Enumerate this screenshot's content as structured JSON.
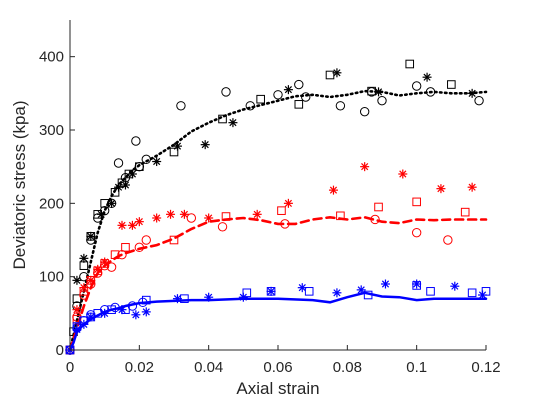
{
  "chart_data": {
    "type": "scatter",
    "title": "",
    "xlabel": "Axial strain",
    "ylabel": "Deviatoric stress (kpa)",
    "xlim": [
      0,
      0.12
    ],
    "ylim": [
      0,
      450
    ],
    "xticks": [
      0,
      0.02,
      0.04,
      0.06,
      0.08,
      0.1,
      0.12
    ],
    "xtick_labels": [
      "0",
      "0.02",
      "0.04",
      "0.06",
      "0.08",
      "0.1",
      "0.12"
    ],
    "yticks": [
      0,
      100,
      200,
      300,
      400
    ],
    "ytick_labels": [
      "0",
      "100",
      "200",
      "300",
      "400"
    ],
    "grid": false,
    "legend": "none",
    "series": [
      {
        "color": "#000000",
        "curve_style": "dotted",
        "curve": [
          [
            0,
            0
          ],
          [
            0.002,
            40
          ],
          [
            0.004,
            80
          ],
          [
            0.006,
            120
          ],
          [
            0.008,
            160
          ],
          [
            0.01,
            190
          ],
          [
            0.012,
            210
          ],
          [
            0.014,
            225
          ],
          [
            0.016,
            235
          ],
          [
            0.018,
            245
          ],
          [
            0.02,
            252
          ],
          [
            0.025,
            265
          ],
          [
            0.03,
            280
          ],
          [
            0.035,
            298
          ],
          [
            0.04,
            310
          ],
          [
            0.045,
            320
          ],
          [
            0.05,
            328
          ],
          [
            0.055,
            334
          ],
          [
            0.06,
            340
          ],
          [
            0.065,
            346
          ],
          [
            0.07,
            348
          ],
          [
            0.075,
            345
          ],
          [
            0.08,
            348
          ],
          [
            0.085,
            353
          ],
          [
            0.09,
            352
          ],
          [
            0.095,
            347
          ],
          [
            0.1,
            350
          ],
          [
            0.105,
            352
          ],
          [
            0.11,
            350
          ],
          [
            0.115,
            350
          ],
          [
            0.12,
            352
          ]
        ],
        "circles": [
          [
            0,
            0
          ],
          [
            0.002,
            60
          ],
          [
            0.004,
            100
          ],
          [
            0.006,
            150
          ],
          [
            0.008,
            180
          ],
          [
            0.01,
            190
          ],
          [
            0.012,
            200
          ],
          [
            0.014,
            255
          ],
          [
            0.016,
            235
          ],
          [
            0.019,
            285
          ],
          [
            0.02,
            250
          ],
          [
            0.022,
            260
          ],
          [
            0.032,
            333
          ],
          [
            0.045,
            352
          ],
          [
            0.052,
            333
          ],
          [
            0.06,
            348
          ],
          [
            0.066,
            362
          ],
          [
            0.068,
            345
          ],
          [
            0.078,
            333
          ],
          [
            0.085,
            325
          ],
          [
            0.087,
            352
          ],
          [
            0.09,
            340
          ],
          [
            0.1,
            360
          ],
          [
            0.104,
            352
          ],
          [
            0.118,
            340
          ]
        ],
        "squares": [
          [
            0,
            0
          ],
          [
            0.001,
            25
          ],
          [
            0.002,
            70
          ],
          [
            0.004,
            115
          ],
          [
            0.006,
            155
          ],
          [
            0.008,
            185
          ],
          [
            0.01,
            200
          ],
          [
            0.013,
            215
          ],
          [
            0.015,
            228
          ],
          [
            0.017,
            240
          ],
          [
            0.02,
            250
          ],
          [
            0.03,
            270
          ],
          [
            0.044,
            315
          ],
          [
            0.055,
            342
          ],
          [
            0.066,
            335
          ],
          [
            0.075,
            375
          ],
          [
            0.087,
            353
          ],
          [
            0.098,
            390
          ],
          [
            0.11,
            362
          ]
        ],
        "stars": [
          [
            0,
            0
          ],
          [
            0.002,
            95
          ],
          [
            0.004,
            125
          ],
          [
            0.006,
            155
          ],
          [
            0.009,
            185
          ],
          [
            0.012,
            200
          ],
          [
            0.014,
            222
          ],
          [
            0.016,
            225
          ],
          [
            0.018,
            240
          ],
          [
            0.025,
            257
          ],
          [
            0.031,
            278
          ],
          [
            0.039,
            280
          ],
          [
            0.047,
            310
          ],
          [
            0.063,
            355
          ],
          [
            0.077,
            378
          ],
          [
            0.089,
            352
          ],
          [
            0.103,
            372
          ],
          [
            0.116,
            350
          ]
        ]
      },
      {
        "color": "#ff0000",
        "curve_style": "dashed",
        "curve": [
          [
            0,
            0
          ],
          [
            0.002,
            30
          ],
          [
            0.004,
            60
          ],
          [
            0.006,
            85
          ],
          [
            0.008,
            105
          ],
          [
            0.01,
            115
          ],
          [
            0.012,
            122
          ],
          [
            0.014,
            128
          ],
          [
            0.016,
            132
          ],
          [
            0.018,
            135
          ],
          [
            0.02,
            138
          ],
          [
            0.025,
            143
          ],
          [
            0.03,
            152
          ],
          [
            0.035,
            165
          ],
          [
            0.04,
            175
          ],
          [
            0.045,
            178
          ],
          [
            0.05,
            180
          ],
          [
            0.055,
            177
          ],
          [
            0.06,
            172
          ],
          [
            0.065,
            172
          ],
          [
            0.07,
            178
          ],
          [
            0.075,
            181
          ],
          [
            0.08,
            178
          ],
          [
            0.085,
            181
          ],
          [
            0.09,
            175
          ],
          [
            0.095,
            173
          ],
          [
            0.1,
            178
          ],
          [
            0.105,
            177
          ],
          [
            0.11,
            178
          ],
          [
            0.115,
            178
          ],
          [
            0.12,
            178
          ]
        ],
        "circles": [
          [
            0,
            0
          ],
          [
            0.002,
            45
          ],
          [
            0.004,
            75
          ],
          [
            0.006,
            90
          ],
          [
            0.008,
            105
          ],
          [
            0.01,
            115
          ],
          [
            0.012,
            113
          ],
          [
            0.015,
            130
          ],
          [
            0.02,
            140
          ],
          [
            0.022,
            150
          ],
          [
            0.035,
            180
          ],
          [
            0.044,
            168
          ],
          [
            0.062,
            172
          ],
          [
            0.088,
            178
          ],
          [
            0.1,
            160
          ],
          [
            0.109,
            150
          ]
        ],
        "squares": [
          [
            0,
            0
          ],
          [
            0.002,
            42
          ],
          [
            0.004,
            80
          ],
          [
            0.006,
            95
          ],
          [
            0.008,
            108
          ],
          [
            0.01,
            118
          ],
          [
            0.013,
            130
          ],
          [
            0.016,
            140
          ],
          [
            0.03,
            150
          ],
          [
            0.045,
            182
          ],
          [
            0.061,
            190
          ],
          [
            0.078,
            183
          ],
          [
            0.089,
            195
          ],
          [
            0.1,
            202
          ],
          [
            0.114,
            188
          ]
        ],
        "stars": [
          [
            0,
            0
          ],
          [
            0.002,
            55
          ],
          [
            0.004,
            85
          ],
          [
            0.006,
            95
          ],
          [
            0.008,
            110
          ],
          [
            0.01,
            120
          ],
          [
            0.015,
            170
          ],
          [
            0.018,
            170
          ],
          [
            0.02,
            175
          ],
          [
            0.025,
            180
          ],
          [
            0.029,
            185
          ],
          [
            0.033,
            185
          ],
          [
            0.04,
            180
          ],
          [
            0.054,
            185
          ],
          [
            0.063,
            200
          ],
          [
            0.076,
            218
          ],
          [
            0.085,
            250
          ],
          [
            0.096,
            240
          ],
          [
            0.107,
            220
          ],
          [
            0.116,
            222
          ]
        ]
      },
      {
        "color": "#0000ff",
        "curve_style": "solid",
        "curve": [
          [
            0,
            0
          ],
          [
            0.001,
            10
          ],
          [
            0.002,
            25
          ],
          [
            0.004,
            35
          ],
          [
            0.006,
            42
          ],
          [
            0.008,
            47
          ],
          [
            0.01,
            52
          ],
          [
            0.012,
            55
          ],
          [
            0.014,
            57
          ],
          [
            0.016,
            60
          ],
          [
            0.018,
            62
          ],
          [
            0.02,
            64
          ],
          [
            0.025,
            66
          ],
          [
            0.03,
            67
          ],
          [
            0.035,
            68
          ],
          [
            0.04,
            68
          ],
          [
            0.05,
            70
          ],
          [
            0.06,
            70
          ],
          [
            0.07,
            68
          ],
          [
            0.075,
            65
          ],
          [
            0.08,
            72
          ],
          [
            0.085,
            78
          ],
          [
            0.09,
            73
          ],
          [
            0.095,
            72
          ],
          [
            0.1,
            68
          ],
          [
            0.105,
            70
          ],
          [
            0.11,
            70
          ],
          [
            0.115,
            70
          ],
          [
            0.12,
            70
          ]
        ],
        "circles": [
          [
            0,
            0
          ],
          [
            0.002,
            30
          ],
          [
            0.004,
            40
          ],
          [
            0.006,
            48
          ],
          [
            0.01,
            55
          ],
          [
            0.013,
            58
          ],
          [
            0.018,
            60
          ],
          [
            0.021,
            65
          ]
        ],
        "squares": [
          [
            0,
            0
          ],
          [
            0.002,
            32
          ],
          [
            0.004,
            40
          ],
          [
            0.006,
            45
          ],
          [
            0.008,
            50
          ],
          [
            0.012,
            55
          ],
          [
            0.016,
            55
          ],
          [
            0.022,
            68
          ],
          [
            0.033,
            70
          ],
          [
            0.051,
            78
          ],
          [
            0.058,
            80
          ],
          [
            0.069,
            80
          ],
          [
            0.086,
            75
          ],
          [
            0.1,
            88
          ],
          [
            0.104,
            80
          ],
          [
            0.116,
            78
          ],
          [
            0.12,
            80
          ]
        ],
        "stars": [
          [
            0,
            0
          ],
          [
            0.002,
            28
          ],
          [
            0.004,
            35
          ],
          [
            0.006,
            45
          ],
          [
            0.01,
            50
          ],
          [
            0.015,
            55
          ],
          [
            0.019,
            48
          ],
          [
            0.022,
            52
          ],
          [
            0.031,
            70
          ],
          [
            0.04,
            72
          ],
          [
            0.05,
            72
          ],
          [
            0.058,
            80
          ],
          [
            0.067,
            85
          ],
          [
            0.077,
            78
          ],
          [
            0.084,
            82
          ],
          [
            0.091,
            90
          ],
          [
            0.1,
            90
          ],
          [
            0.111,
            87
          ],
          [
            0.119,
            75
          ]
        ]
      }
    ]
  }
}
